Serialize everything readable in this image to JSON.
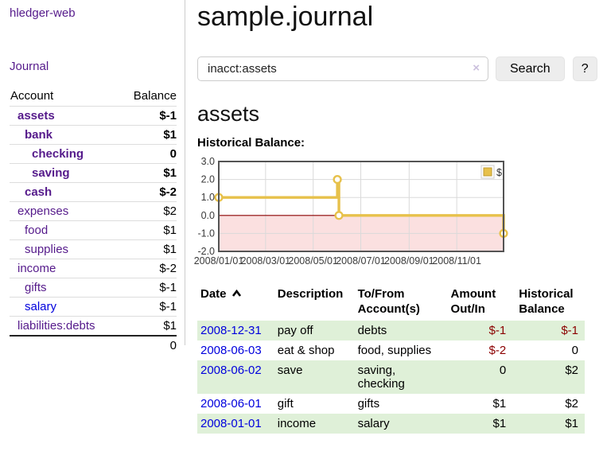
{
  "colors": {
    "link_visited": "#551a8b",
    "link_new": "#0000dd",
    "negative": "#8b0000",
    "negative_faded": "#bf7373",
    "row_stripe_green": "#dff0d8",
    "chart_line_gold": "#e7c14b",
    "chart_negative_fill": "#fbe0e0",
    "zero_line": "#8b0000"
  },
  "app": {
    "title": "hledger-web"
  },
  "sidebar": {
    "journal_label": "Journal",
    "accounts": {
      "headers": [
        "Account",
        "Balance"
      ],
      "rows": [
        {
          "name": "assets",
          "indent": 0,
          "bold": true,
          "link_state": "visited",
          "balance": "$-1",
          "balance_color": "negative"
        },
        {
          "name": "bank",
          "indent": 1,
          "bold": true,
          "link_state": "visited",
          "balance": "$1",
          "balance_color": "normal"
        },
        {
          "name": "checking",
          "indent": 2,
          "bold": true,
          "link_state": "visited",
          "balance": "0",
          "balance_color": "normal"
        },
        {
          "name": "saving",
          "indent": 2,
          "bold": true,
          "link_state": "visited",
          "balance": "$1",
          "balance_color": "normal"
        },
        {
          "name": "cash",
          "indent": 1,
          "bold": true,
          "link_state": "visited",
          "balance": "$-2",
          "balance_color": "negative"
        },
        {
          "name": "expenses",
          "indent": 0,
          "bold": false,
          "link_state": "visited",
          "balance": "$2",
          "balance_color": "normal"
        },
        {
          "name": "food",
          "indent": 1,
          "bold": false,
          "link_state": "visited",
          "balance": "$1",
          "balance_color": "normal"
        },
        {
          "name": "supplies",
          "indent": 1,
          "bold": false,
          "link_state": "visited",
          "balance": "$1",
          "balance_color": "normal"
        },
        {
          "name": "income",
          "indent": 0,
          "bold": false,
          "link_state": "visited",
          "balance": "$-2",
          "balance_color": "negative-faded"
        },
        {
          "name": "gifts",
          "indent": 1,
          "bold": false,
          "link_state": "visited",
          "balance": "$-1",
          "balance_color": "negative-faded"
        },
        {
          "name": "salary",
          "indent": 1,
          "bold": false,
          "link_state": "new",
          "balance": "$-1",
          "balance_color": "negative-faded"
        },
        {
          "name": "liabilities:debts",
          "indent": 0,
          "bold": false,
          "link_state": "visited",
          "balance": "$1",
          "balance_color": "normal"
        }
      ],
      "total": "0"
    }
  },
  "main": {
    "title": "sample.journal",
    "search": {
      "value": "inacct:assets",
      "clear_icon": "×",
      "search_label": "Search",
      "help_label": "?"
    },
    "account_heading": "assets"
  },
  "chart_data": {
    "type": "line",
    "title": "Historical Balance:",
    "step": true,
    "grid": true,
    "legend": [
      {
        "label": "$",
        "color": "#e7c14b"
      }
    ],
    "legend_position": "top-right",
    "ylim": [
      -2.0,
      3.0
    ],
    "y_ticks": [
      "3.0",
      "2.0",
      "1.0",
      "0.0",
      "-1.0",
      "-2.0"
    ],
    "x_range": [
      "2008-01-01",
      "2008-12-31"
    ],
    "x_range_days": 365,
    "x_ticks": [
      {
        "label": "2008/01/01",
        "day": 0
      },
      {
        "label": "2008/03/01",
        "day": 60
      },
      {
        "label": "2008/05/01",
        "day": 121
      },
      {
        "label": "2008/07/01",
        "day": 182
      },
      {
        "label": "2008/09/01",
        "day": 244
      },
      {
        "label": "2008/11/01",
        "day": 305
      }
    ],
    "series": [
      {
        "name": "$",
        "points": [
          {
            "date": "2008-01-01",
            "day": 0,
            "value": 1
          },
          {
            "date": "2008-06-01",
            "day": 152,
            "value": 2
          },
          {
            "date": "2008-06-03",
            "day": 154,
            "value": 0
          },
          {
            "date": "2008-12-31",
            "day": 365,
            "value": -1
          }
        ]
      }
    ],
    "negative_region_highlighted": true
  },
  "register": {
    "headers": [
      {
        "label": "Date",
        "sorted": "ascending"
      },
      {
        "label": "Description"
      },
      {
        "label": "To/From Account(s)"
      },
      {
        "label": "Amount Out/In"
      },
      {
        "label": "Historical Balance"
      }
    ],
    "rows": [
      {
        "date": "2008-12-31",
        "description": "pay off",
        "accounts": "debts",
        "amount": "$-1",
        "amount_color": "negative",
        "balance": "$-1",
        "balance_color": "negative"
      },
      {
        "date": "2008-06-03",
        "description": "eat & shop",
        "accounts": "food, supplies",
        "amount": "$-2",
        "amount_color": "negative",
        "balance": "0",
        "balance_color": "normal"
      },
      {
        "date": "2008-06-02",
        "description": "save",
        "accounts": "saving, checking",
        "amount": "0",
        "amount_color": "normal",
        "balance": "$2",
        "balance_color": "normal"
      },
      {
        "date": "2008-06-01",
        "description": "gift",
        "accounts": "gifts",
        "amount": "$1",
        "amount_color": "normal",
        "balance": "$2",
        "balance_color": "normal"
      },
      {
        "date": "2008-01-01",
        "description": "income",
        "accounts": "salary",
        "amount": "$1",
        "amount_color": "normal",
        "balance": "$1",
        "balance_color": "normal"
      }
    ]
  }
}
